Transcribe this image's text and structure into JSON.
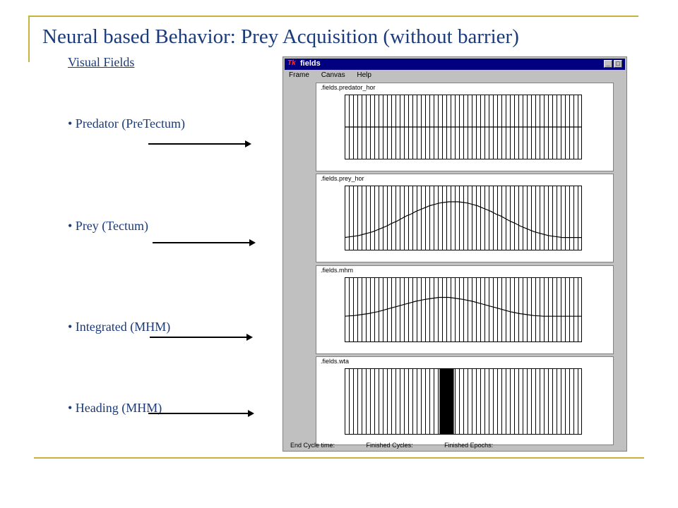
{
  "slide": {
    "title": "Neural based Behavior: Prey Acquisition (without barrier)",
    "subtitle": "Visual Fields",
    "bullets": [
      "• Predator (PreTectum)",
      "• Prey (Tectum)",
      "• Integrated (MHM)",
      "• Heading (MHM)"
    ]
  },
  "window": {
    "title": "fields",
    "icon": "tk-icon",
    "menu": [
      "Frame",
      "Canvas",
      "Help"
    ],
    "panels": [
      {
        "label": ".fields.predator_hor",
        "values": [
          0.5,
          0.5,
          0.5,
          0.5,
          0.5,
          0.5,
          0.5,
          0.5,
          0.5,
          0.5,
          0.5,
          0.5,
          0.5,
          0.5,
          0.5,
          0.5,
          0.5,
          0.5,
          0.5,
          0.5,
          0.5,
          0.5,
          0.5,
          0.5,
          0.5,
          0.5,
          0.5,
          0.5,
          0.5,
          0.5,
          0.5,
          0.5,
          0.5,
          0.5,
          0.5,
          0.5,
          0.5,
          0.5,
          0.5,
          0.5,
          0.5,
          0.5,
          0.5,
          0.5,
          0.5,
          0.5,
          0.5,
          0.5,
          0.5,
          0.5,
          0.5
        ]
      },
      {
        "label": ".fields.prey_hor",
        "values": [
          0.2,
          0.21,
          0.22,
          0.23,
          0.25,
          0.27,
          0.29,
          0.32,
          0.35,
          0.38,
          0.42,
          0.45,
          0.49,
          0.53,
          0.56,
          0.6,
          0.63,
          0.66,
          0.69,
          0.71,
          0.73,
          0.74,
          0.75,
          0.75,
          0.75,
          0.74,
          0.73,
          0.71,
          0.69,
          0.66,
          0.63,
          0.6,
          0.56,
          0.53,
          0.49,
          0.45,
          0.42,
          0.38,
          0.35,
          0.32,
          0.29,
          0.27,
          0.25,
          0.23,
          0.22,
          0.21,
          0.2,
          0.2,
          0.2,
          0.2,
          0.2
        ]
      },
      {
        "label": ".fields.mhm",
        "values": [
          0.4,
          0.405,
          0.41,
          0.42,
          0.43,
          0.44,
          0.455,
          0.47,
          0.49,
          0.51,
          0.53,
          0.55,
          0.57,
          0.59,
          0.61,
          0.63,
          0.645,
          0.66,
          0.67,
          0.68,
          0.69,
          0.69,
          0.69,
          0.68,
          0.67,
          0.66,
          0.645,
          0.63,
          0.61,
          0.59,
          0.57,
          0.55,
          0.53,
          0.51,
          0.49,
          0.47,
          0.455,
          0.44,
          0.43,
          0.42,
          0.41,
          0.405,
          0.4,
          0.4,
          0.4,
          0.4,
          0.4,
          0.4,
          0.4,
          0.4,
          0.4
        ]
      },
      {
        "label": ".fields.wta",
        "winner_start": 0.4,
        "winner_end": 0.46
      }
    ],
    "status": [
      "End Cycle time:",
      "Finished Cycles:",
      "Finished Epochs:"
    ]
  },
  "colors": {
    "title": "#1a3a7a",
    "accent": "#c8b43c",
    "titlebar": "#000080"
  }
}
